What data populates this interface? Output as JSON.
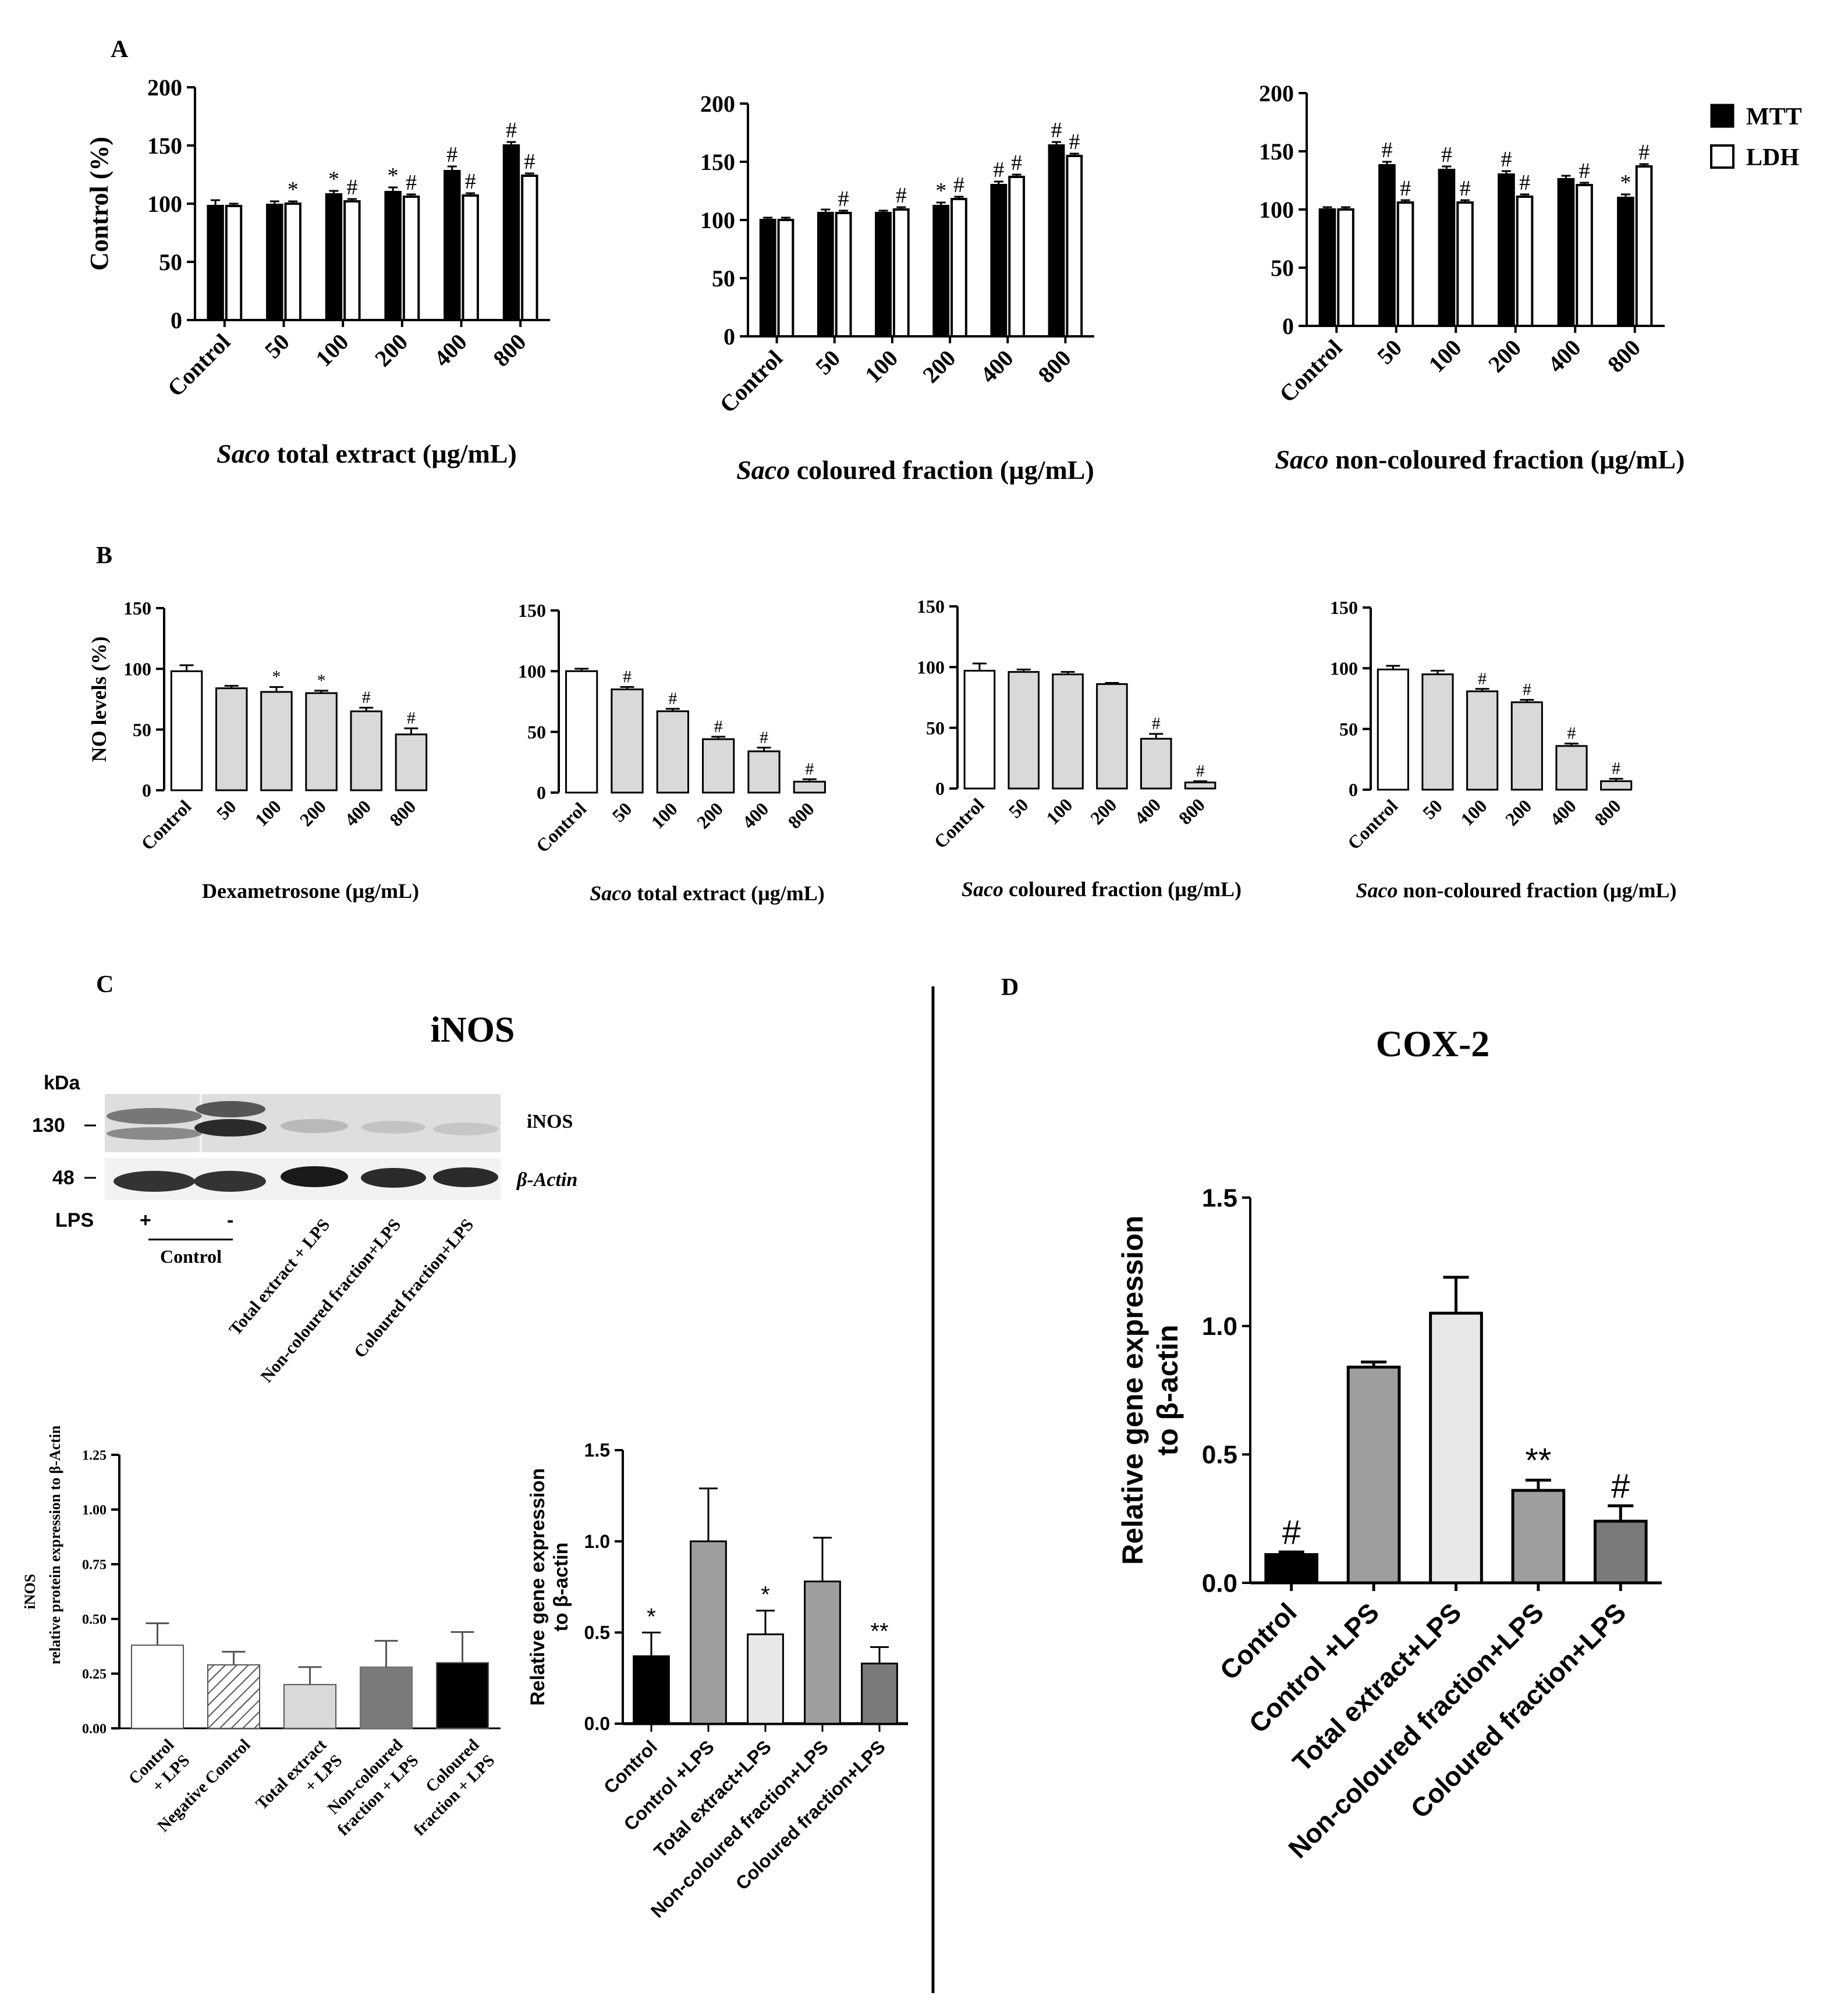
{
  "panel_labels": [
    "A",
    "B",
    "C",
    "D"
  ],
  "colors": {
    "black": "#000000",
    "white": "#ffffff",
    "light_gray": "#d9d9d9",
    "mid_gray": "#9e9e9e",
    "dark_gray": "#7a7a7a",
    "pale_gray": "#e8e8e8"
  },
  "legend_A": {
    "items": [
      {
        "name": "MTT",
        "fill": "#000000"
      },
      {
        "name": "LDH",
        "fill": "#ffffff"
      }
    ]
  },
  "panel_C_blot": {
    "title": "iNOS",
    "kda_label": "kDa",
    "markers": [
      {
        "value": "130",
        "band": "iNOS"
      },
      {
        "value": "48",
        "band": "β-Actin"
      }
    ],
    "band_labels": [
      "iNOS",
      "β-Actin"
    ],
    "lps_label": "LPS",
    "lps_signs": [
      "+",
      "-"
    ],
    "control_label": "Control",
    "lane_labels": [
      "Total extract + LPS",
      "Non-coloured fraction+LPS",
      "Coloured fraction+LPS"
    ]
  },
  "chart_data": [
    {
      "id": "A1",
      "type": "bar",
      "panel": "A",
      "categories": [
        "Control",
        "50",
        "100",
        "200",
        "400",
        "800"
      ],
      "series": [
        {
          "name": "MTT",
          "values": [
            98,
            99,
            108,
            110,
            128,
            150
          ],
          "errors": [
            5,
            3,
            3,
            4,
            4,
            3
          ],
          "marks": [
            "",
            "",
            "*",
            "*",
            "#",
            "#"
          ]
        },
        {
          "name": "LDH",
          "values": [
            98,
            100,
            102,
            106,
            107,
            124
          ],
          "errors": [
            2,
            2,
            2,
            2,
            2,
            2
          ],
          "marks": [
            "",
            "*",
            "#",
            "#",
            "#",
            "#"
          ]
        }
      ],
      "xlabel_italic": "Saco",
      "xlabel": " total extract (µg/mL)",
      "ylabel": "Control (%)",
      "ylim": [
        0,
        200
      ],
      "yticks": [
        0,
        50,
        100,
        150,
        200
      ]
    },
    {
      "id": "A2",
      "type": "bar",
      "panel": "A",
      "categories": [
        "Control",
        "50",
        "100",
        "200",
        "400",
        "800"
      ],
      "series": [
        {
          "name": "MTT",
          "values": [
            100,
            106,
            106,
            112,
            130,
            164
          ],
          "errors": [
            2,
            3,
            2,
            3,
            3,
            3
          ],
          "marks": [
            "",
            "",
            "",
            "*",
            "#",
            "#"
          ]
        },
        {
          "name": "LDH",
          "values": [
            100,
            106,
            109,
            118,
            137,
            155
          ],
          "errors": [
            2,
            2,
            2,
            2,
            2,
            2
          ],
          "marks": [
            "",
            "#",
            "#",
            "#",
            "#",
            "#"
          ]
        }
      ],
      "xlabel_italic": "Saco",
      "xlabel": " coloured fraction (µg/mL)",
      "ylabel": "",
      "ylim": [
        0,
        200
      ],
      "yticks": [
        0,
        50,
        100,
        150,
        200
      ]
    },
    {
      "id": "A3",
      "type": "bar",
      "panel": "A",
      "categories": [
        "Control",
        "50",
        "100",
        "200",
        "400",
        "800"
      ],
      "series": [
        {
          "name": "MTT",
          "values": [
            100,
            138,
            134,
            130,
            126,
            110
          ],
          "errors": [
            2,
            3,
            3,
            3,
            3,
            3
          ],
          "marks": [
            "",
            "#",
            "#",
            "#",
            "",
            "*"
          ]
        },
        {
          "name": "LDH",
          "values": [
            100,
            106,
            106,
            111,
            121,
            137
          ],
          "errors": [
            2,
            2,
            2,
            2,
            2,
            2
          ],
          "marks": [
            "",
            "#",
            "#",
            "#",
            "#",
            "#"
          ]
        }
      ],
      "xlabel_italic": "Saco",
      "xlabel": " non-coloured fraction (µg/mL)",
      "ylabel": "",
      "ylim": [
        0,
        200
      ],
      "yticks": [
        0,
        50,
        100,
        150,
        200
      ]
    },
    {
      "id": "B1",
      "type": "bar",
      "panel": "B",
      "categories": [
        "Control",
        "50",
        "100",
        "200",
        "400",
        "800"
      ],
      "values": [
        98,
        84,
        81,
        80,
        65,
        46
      ],
      "errors": [
        5,
        2,
        4,
        2,
        3,
        5
      ],
      "marks": [
        "",
        "",
        "*",
        "*",
        "#",
        "#"
      ],
      "xlabel_italic": "",
      "xlabel": "Dexametrosone (µg/mL)",
      "ylabel": "NO levels (%)",
      "ylim": [
        0,
        150
      ],
      "yticks": [
        0,
        50,
        100,
        150
      ]
    },
    {
      "id": "B2",
      "type": "bar",
      "panel": "B",
      "categories": [
        "Control",
        "50",
        "100",
        "200",
        "400",
        "800"
      ],
      "values": [
        100,
        85,
        67,
        44,
        34,
        9
      ],
      "errors": [
        2,
        2,
        2,
        2,
        3,
        2
      ],
      "marks": [
        "",
        "#",
        "#",
        "#",
        "#",
        "#"
      ],
      "xlabel_italic": "Saco",
      "xlabel": " total extract (µg/mL)",
      "ylabel": "",
      "ylim": [
        0,
        150
      ],
      "yticks": [
        0,
        50,
        100,
        150
      ]
    },
    {
      "id": "B3",
      "type": "bar",
      "panel": "B",
      "categories": [
        "Control",
        "50",
        "100",
        "200",
        "400",
        "800"
      ],
      "values": [
        97,
        96,
        94,
        86,
        41,
        5
      ],
      "errors": [
        6,
        2,
        2,
        1,
        4,
        1
      ],
      "marks": [
        "",
        "",
        "",
        "",
        "#",
        "#"
      ],
      "xlabel_italic": "Saco",
      "xlabel": " coloured fraction (µg/mL)",
      "ylabel": "",
      "ylim": [
        0,
        150
      ],
      "yticks": [
        0,
        50,
        100,
        150
      ]
    },
    {
      "id": "B4",
      "type": "bar",
      "panel": "B",
      "categories": [
        "Control",
        "50",
        "100",
        "200",
        "400",
        "800"
      ],
      "values": [
        99,
        95,
        81,
        72,
        36,
        7
      ],
      "errors": [
        3,
        3,
        2,
        2,
        2,
        2
      ],
      "marks": [
        "",
        "",
        "#",
        "#",
        "#",
        "#"
      ],
      "xlabel_italic": "Saco",
      "xlabel": " non-coloured fraction (µg/mL)",
      "ylabel": "",
      "ylim": [
        0,
        150
      ],
      "yticks": [
        0,
        50,
        100,
        150
      ]
    },
    {
      "id": "C1",
      "type": "bar",
      "panel": "C",
      "categories": [
        [
          "Control",
          "+ LPS"
        ],
        [
          "Negative Control"
        ],
        [
          "Total extract",
          "+ LPS"
        ],
        [
          "Non-coloured",
          "fraction + LPS"
        ],
        [
          "Coloured",
          "fraction + LPS"
        ]
      ],
      "values": [
        0.38,
        0.29,
        0.2,
        0.28,
        0.3
      ],
      "errors": [
        0.1,
        0.06,
        0.08,
        0.12,
        0.14
      ],
      "fills": [
        "white",
        "hatch",
        "light",
        "dark",
        "black"
      ],
      "ylabel_lines": [
        "iNOS",
        "relative protein expression to β-Actin"
      ],
      "ylim": [
        0,
        1.25
      ],
      "yticks": [
        "0.00",
        "0.25",
        "0.50",
        "0.75",
        "1.00",
        "1.25"
      ]
    },
    {
      "id": "C2",
      "type": "bar",
      "panel": "C",
      "categories": [
        "Control",
        "Control +LPS",
        "Total extract+LPS",
        "Non-coloured fraction+LPS",
        "Coloured fraction+LPS"
      ],
      "values": [
        0.37,
        1.0,
        0.49,
        0.78,
        0.33
      ],
      "errors": [
        0.13,
        0.29,
        0.13,
        0.24,
        0.09
      ],
      "marks": [
        "*",
        "",
        "*",
        "",
        "**"
      ],
      "fills": [
        "black",
        "mid",
        "pale",
        "mid",
        "dark"
      ],
      "ylabel_lines": [
        "Relative gene expression",
        "to β-actin"
      ],
      "ylim": [
        0,
        1.5
      ],
      "yticks": [
        "0.0",
        "0.5",
        "1.0",
        "1.5"
      ]
    },
    {
      "id": "D",
      "type": "bar",
      "panel": "D",
      "title": "COX-2",
      "categories": [
        "Control",
        "Control +LPS",
        "Total extract+LPS",
        "Non-coloured fraction+LPS",
        "Coloured fraction+LPS"
      ],
      "values": [
        0.11,
        0.84,
        1.05,
        0.36,
        0.24
      ],
      "errors": [
        0.01,
        0.02,
        0.14,
        0.04,
        0.06
      ],
      "marks": [
        "#",
        "",
        "",
        "**",
        "#"
      ],
      "fills": [
        "black",
        "mid",
        "pale",
        "mid",
        "dark"
      ],
      "ylabel_lines": [
        "Relative gene expression",
        "to β-actin"
      ],
      "ylim": [
        0,
        1.5
      ],
      "yticks": [
        "0.0",
        "0.5",
        "1.0",
        "1.5"
      ]
    }
  ]
}
